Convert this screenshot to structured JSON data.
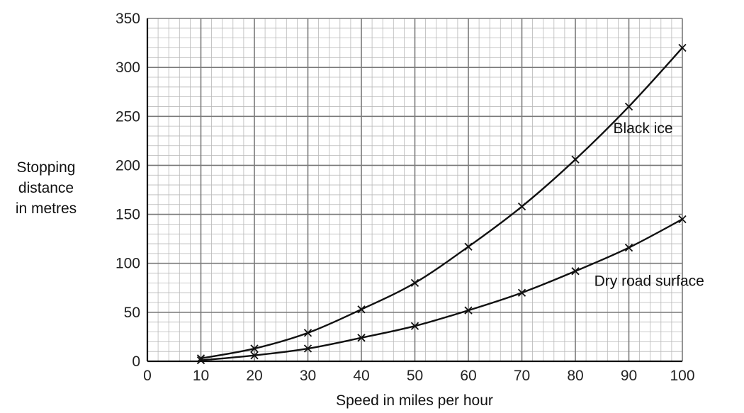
{
  "chart_data": {
    "type": "line",
    "title": "",
    "xlabel": "Speed in miles per hour",
    "ylabel": "Stopping\ndistance\nin metres",
    "xlim": [
      0,
      100
    ],
    "ylim": [
      0,
      350
    ],
    "xticks": [
      0,
      10,
      20,
      30,
      40,
      50,
      60,
      70,
      80,
      90,
      100
    ],
    "yticks": [
      0,
      50,
      100,
      150,
      200,
      250,
      300,
      350
    ],
    "grid": true,
    "series": [
      {
        "name": "Black ice",
        "x": [
          10,
          20,
          30,
          40,
          50,
          60,
          70,
          80,
          90,
          100
        ],
        "y": [
          3,
          13,
          29,
          53,
          80,
          117,
          158,
          206,
          260,
          320
        ]
      },
      {
        "name": "Dry road surface",
        "x": [
          10,
          20,
          30,
          40,
          50,
          60,
          70,
          80,
          90,
          100
        ],
        "y": [
          1,
          6,
          13,
          24,
          36,
          52,
          70,
          92,
          116,
          145
        ]
      }
    ]
  }
}
